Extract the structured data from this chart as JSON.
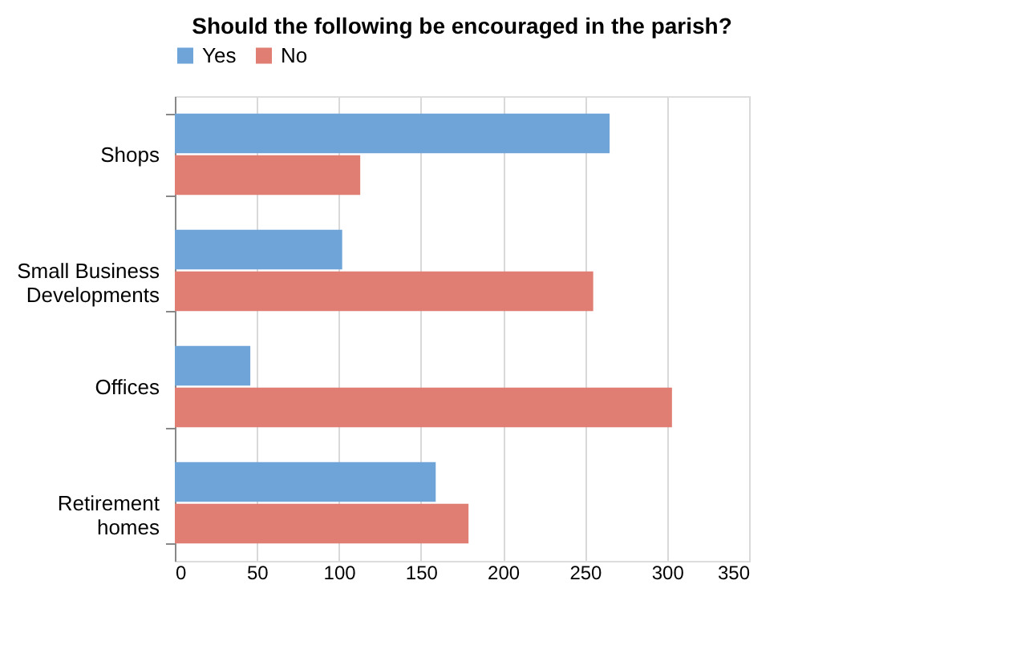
{
  "chart_data": {
    "type": "bar",
    "orientation": "horizontal",
    "title": "Should the following be encouraged in the parish?",
    "categories": [
      "Shops",
      "Small Business Developments",
      "Offices",
      "Retirement homes"
    ],
    "series": [
      {
        "name": "Yes",
        "color": "#6fa4d8",
        "values": [
          265,
          102,
          46,
          159
        ]
      },
      {
        "name": "No",
        "color": "#e07e74",
        "values": [
          113,
          255,
          303,
          179
        ]
      }
    ],
    "xlim": [
      0,
      350
    ],
    "xticks": [
      0,
      50,
      100,
      150,
      200,
      250,
      300,
      350
    ],
    "grid": "x",
    "legend": "top"
  }
}
